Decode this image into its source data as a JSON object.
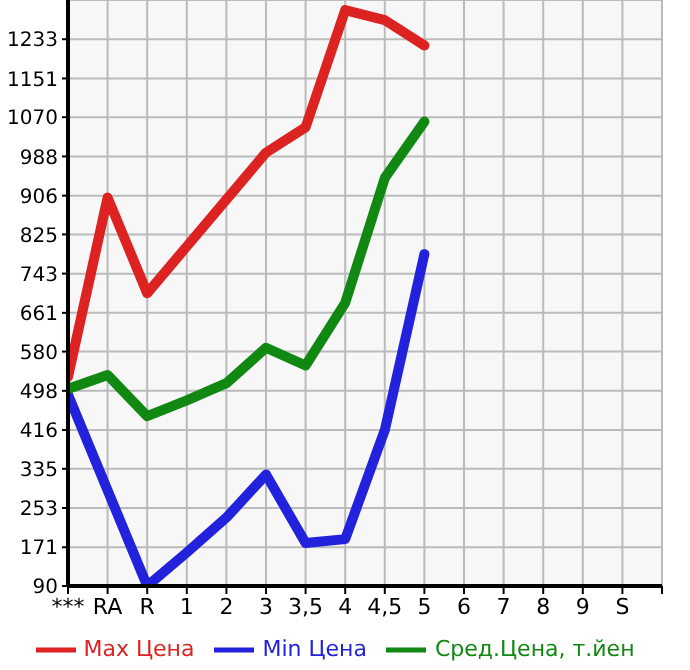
{
  "chart_data": {
    "type": "line",
    "categories": [
      "***",
      "RA",
      "R",
      "1",
      "2",
      "3",
      "3,5",
      "4",
      "4,5",
      "5",
      "6",
      "7",
      "8",
      "9",
      "S",
      null
    ],
    "series": [
      {
        "name": "Max Цена",
        "color": "#dd2222",
        "values": [
          527,
          902,
          702,
          800,
          898,
          996,
          1049,
          1294,
          1273,
          1220,
          null,
          null,
          null,
          null,
          null,
          null
        ]
      },
      {
        "name": "Min Цена",
        "color": "#2222dd",
        "values": [
          490,
          290,
          90,
          160,
          233,
          323,
          180,
          188,
          416,
          784,
          null,
          null,
          null,
          null,
          null,
          null
        ]
      },
      {
        "name": "Сред.Цена, т.йен",
        "color": "#118811",
        "values": [
          502,
          531,
          445,
          478,
          514,
          588,
          551,
          682,
          943,
          1061,
          null,
          null,
          null,
          null,
          null,
          null
        ]
      }
    ],
    "ylim": [
      90,
      1315
    ],
    "yticks": [
      90,
      171,
      253,
      335,
      416,
      498,
      580,
      661,
      743,
      825,
      906,
      988,
      1070,
      1151,
      1233
    ],
    "grid": true,
    "legend": "bottom",
    "marker": "none",
    "line_style": "solid"
  }
}
